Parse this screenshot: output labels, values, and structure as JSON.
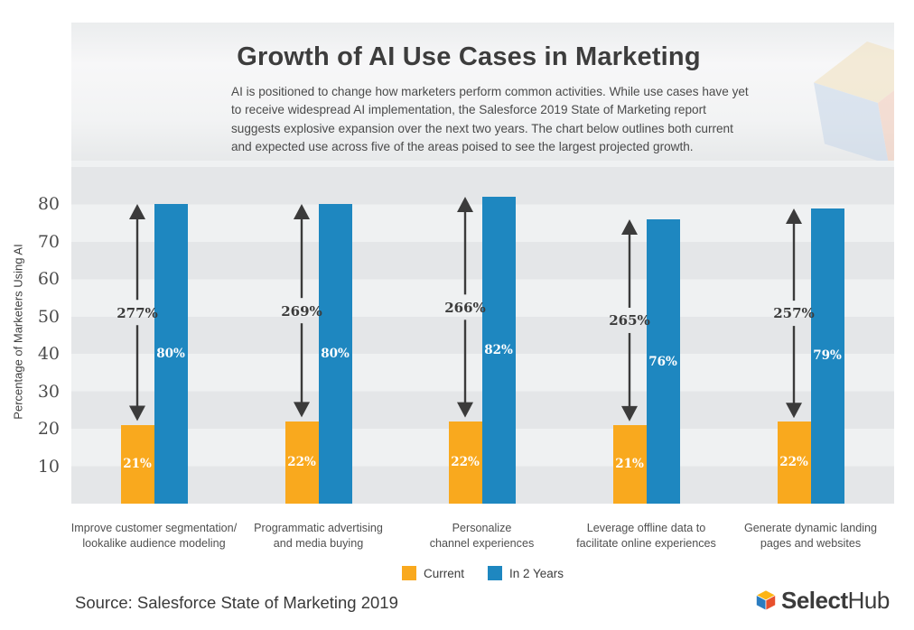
{
  "header": {
    "title": "Growth of AI Use Cases in Marketing",
    "subtitle": "AI is positioned to change how marketers perform common activities. While use cases have yet to receive widespread AI implementation, the Salesforce 2019 State of Marketing report suggests explosive expansion over the next two years. The chart below outlines both current and expected use across five of the areas poised to see the largest projected growth."
  },
  "chart_data": {
    "type": "bar",
    "title": "Growth of AI Use Cases in Marketing",
    "ylabel": "Percentage of Marketers Using AI",
    "ylim": [
      0,
      91.7
    ],
    "yticks": [
      10,
      20,
      30,
      40,
      50,
      60,
      70,
      80
    ],
    "grid": "striped-bands",
    "legend_position": "bottom",
    "categories": [
      "Improve customer segmentation/\nlookalike audience modeling",
      "Programmatic advertising\nand media buying",
      "Personalize\nchannel experiences",
      "Leverage offline data to\nfacilitate online experiences",
      "Generate dynamic landing\npages and websites"
    ],
    "series": [
      {
        "name": "Current",
        "color": "#F9A91E",
        "values": [
          21,
          22,
          22,
          21,
          22
        ]
      },
      {
        "name": "In 2 Years",
        "color": "#1E87C0",
        "values": [
          80,
          80,
          82,
          76,
          79
        ]
      }
    ],
    "growth_labels": [
      "277%",
      "269%",
      "266%",
      "265%",
      "257%"
    ]
  },
  "legend": {
    "items": [
      {
        "label": "Current",
        "color": "#F9A91E"
      },
      {
        "label": "In 2 Years",
        "color": "#1E87C0"
      }
    ]
  },
  "footer": {
    "source": "Source: Salesforce State of Marketing 2019",
    "logo": {
      "select": "Select",
      "hub": "Hub"
    }
  },
  "colors": {
    "current": "#F9A91E",
    "in_2_years": "#1E87C0",
    "arrow": "#3B3B3B",
    "stripe_dark": "#E4E6E8",
    "stripe_light": "#EFF1F2"
  }
}
